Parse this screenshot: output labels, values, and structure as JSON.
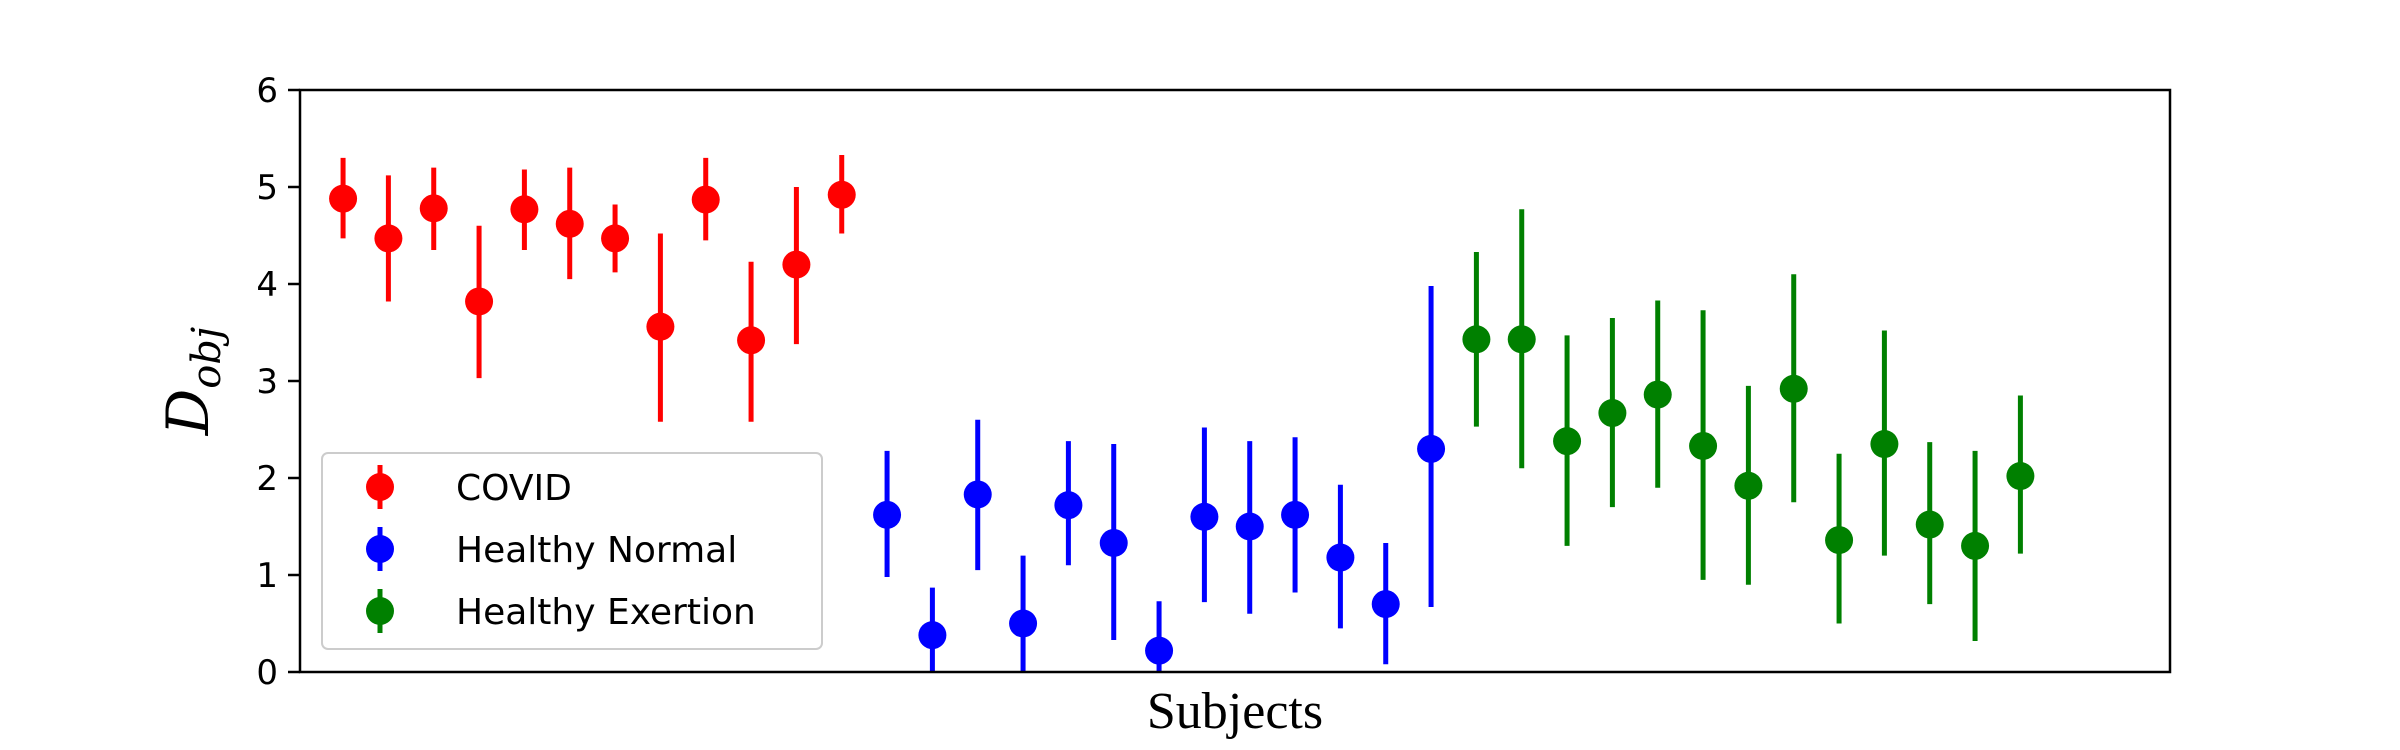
{
  "chart_data": {
    "type": "scatter",
    "title": "",
    "xlabel": "Subjects",
    "ylabel": {
      "base": "D",
      "subscript": "obj"
    },
    "ylim": [
      0,
      6
    ],
    "yticks": [
      "0",
      "1",
      "2",
      "3",
      "4",
      "5",
      "6"
    ],
    "grid": false,
    "legend_position": "lower-left",
    "series": [
      {
        "name": "COVID",
        "color": "#ff0000",
        "x": [
          1,
          2,
          3,
          4,
          5,
          6,
          7,
          8,
          9,
          10,
          11,
          12
        ],
        "y": [
          4.88,
          4.47,
          4.78,
          3.82,
          4.77,
          4.62,
          4.47,
          3.56,
          4.87,
          3.42,
          4.2,
          4.92
        ],
        "err_low": [
          4.47,
          3.82,
          4.35,
          3.03,
          4.35,
          4.05,
          4.12,
          2.58,
          4.45,
          2.58,
          3.38,
          4.52
        ],
        "err_high": [
          5.3,
          5.12,
          5.2,
          4.6,
          5.18,
          5.2,
          4.82,
          4.52,
          5.3,
          4.23,
          5.0,
          5.33
        ]
      },
      {
        "name": "Healthy Normal",
        "color": "#0000ff",
        "x": [
          13,
          14,
          15,
          16,
          17,
          18,
          19,
          20,
          21,
          22,
          23,
          24,
          25
        ],
        "y": [
          1.62,
          0.38,
          1.83,
          0.5,
          1.72,
          1.33,
          0.22,
          1.6,
          1.5,
          1.62,
          1.18,
          0.7,
          2.3
        ],
        "err_low": [
          0.98,
          0.0,
          1.05,
          0.0,
          1.1,
          0.33,
          0.0,
          0.72,
          0.6,
          0.82,
          0.45,
          0.08,
          0.67
        ],
        "err_high": [
          2.28,
          0.87,
          2.6,
          1.2,
          2.38,
          2.35,
          0.73,
          2.52,
          2.38,
          2.42,
          1.93,
          1.33,
          3.98
        ]
      },
      {
        "name": "Healthy Exertion",
        "color": "#008000",
        "x": [
          26,
          27,
          28,
          29,
          30,
          31,
          32,
          33,
          34,
          35,
          36,
          37,
          38
        ],
        "y": [
          3.43,
          3.43,
          2.38,
          2.67,
          2.86,
          2.33,
          1.92,
          2.92,
          1.36,
          2.35,
          1.52,
          1.3,
          2.02
        ],
        "err_low": [
          2.53,
          2.1,
          1.3,
          1.7,
          1.9,
          0.95,
          0.9,
          1.75,
          0.5,
          1.2,
          0.7,
          0.32,
          1.22
        ],
        "err_high": [
          4.33,
          4.77,
          3.47,
          3.65,
          3.83,
          3.73,
          2.95,
          4.1,
          2.25,
          3.52,
          2.37,
          2.28,
          2.85
        ]
      }
    ]
  }
}
